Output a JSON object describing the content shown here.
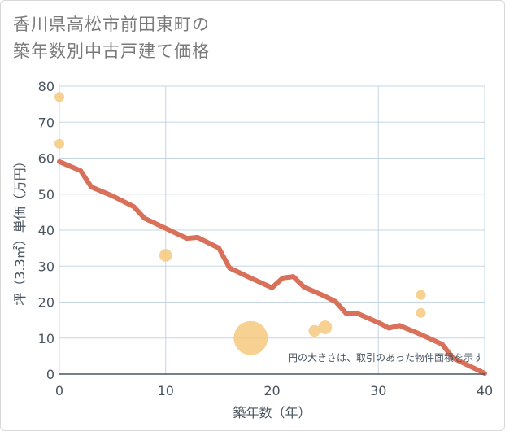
{
  "title_lines": [
    "香川県高松市前田東町の",
    "築年数別中古戸建て価格"
  ],
  "chart_data": {
    "type": "scatter",
    "title": "香川県高松市前田東町の築年数別中古戸建て価格",
    "xlabel": "築年数（年）",
    "ylabel": "坪（3.3㎡）単価（万円）",
    "xlim": [
      0,
      40
    ],
    "ylim": [
      0,
      80
    ],
    "x_ticks": [
      0,
      10,
      20,
      30,
      40
    ],
    "y_ticks": [
      0,
      10,
      20,
      30,
      40,
      50,
      60,
      70,
      80
    ],
    "grid": true,
    "note": "円の大きさは、取引のあった物件面積を示す",
    "colors": {
      "points": "#f5c97e",
      "trend": "#d9705a",
      "grid": "#c6d5e4",
      "axis": "#4a5560"
    },
    "points": [
      {
        "x": 0,
        "y": 77,
        "size": 1
      },
      {
        "x": 0,
        "y": 64,
        "size": 1
      },
      {
        "x": 10,
        "y": 33,
        "size": 1.3
      },
      {
        "x": 18,
        "y": 10,
        "size": 3.5
      },
      {
        "x": 24,
        "y": 12,
        "size": 1.2
      },
      {
        "x": 25,
        "y": 13,
        "size": 1.4
      },
      {
        "x": 34,
        "y": 22,
        "size": 1
      },
      {
        "x": 34,
        "y": 17,
        "size": 1
      }
    ],
    "trend": {
      "x": [
        0,
        2,
        3,
        5,
        7,
        8,
        10,
        12,
        13,
        15,
        16,
        18,
        20,
        21,
        22,
        23,
        25,
        26,
        27,
        28,
        30,
        31,
        32,
        34,
        36,
        37,
        40
      ],
      "y": [
        59,
        56.5,
        52,
        49.5,
        46.5,
        43.3,
        40.5,
        37.7,
        38,
        35,
        29.5,
        26.7,
        24,
        26.7,
        27.1,
        24.2,
        21.6,
        20.1,
        16.8,
        16.9,
        14.3,
        12.8,
        13.5,
        11,
        8.3,
        4.5,
        0.2
      ]
    }
  }
}
